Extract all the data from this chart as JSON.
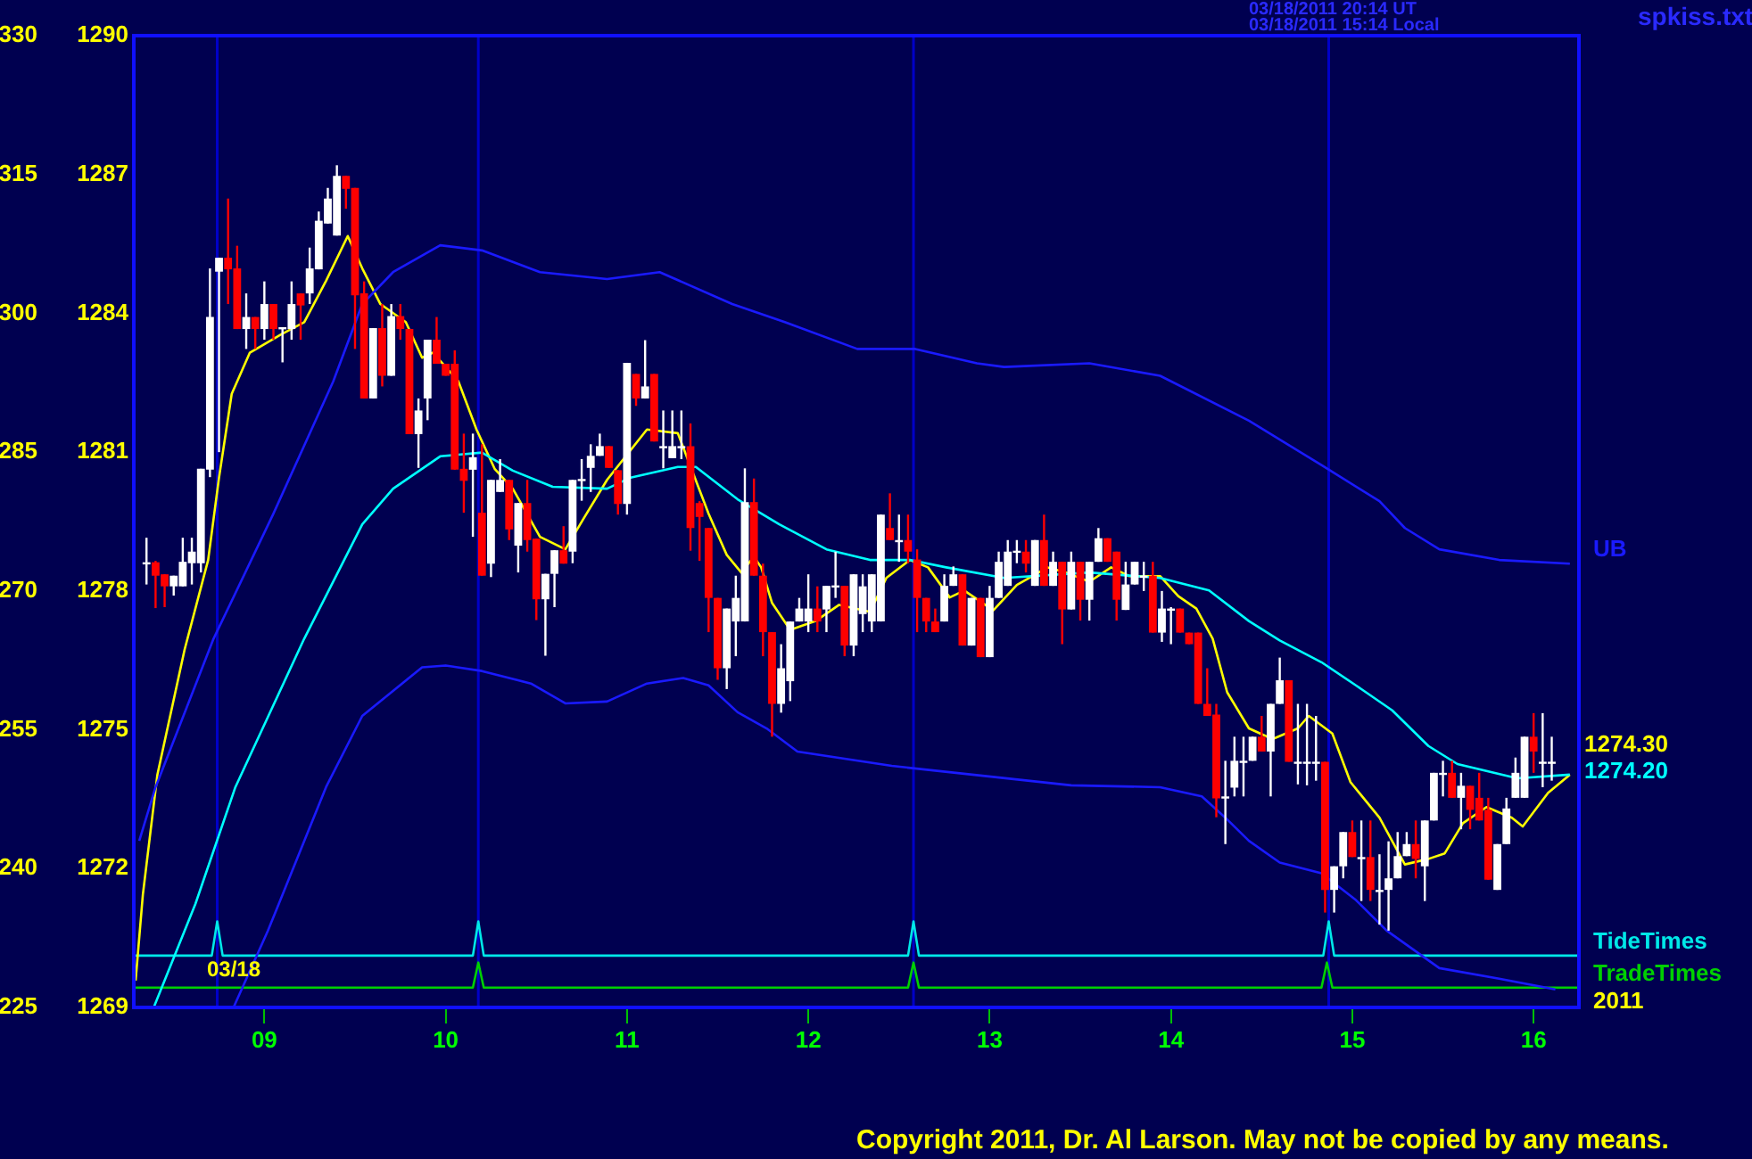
{
  "chart_data": {
    "type": "candlestick",
    "annotations": [
      "03/18/2011 20:14 UT",
      "03/18/2011 15:14 Local",
      "spkiss.txt",
      "03/18",
      "2011",
      "Copyright 2011, Dr. Al Larson. May not be copied by any means.",
      "1274.30",
      "1274.20"
    ],
    "x": [
      8.35,
      8.4,
      8.45,
      8.5,
      8.55,
      8.6,
      8.65,
      8.7,
      8.75,
      8.8,
      8.85,
      8.9,
      8.95,
      9,
      9.05,
      9.1,
      9.15,
      9.2,
      9.25,
      9.3,
      9.35,
      9.4,
      9.45,
      9.5,
      9.55,
      9.6,
      9.65,
      9.7,
      9.75,
      9.8,
      9.85,
      9.9,
      9.95,
      10,
      10.05,
      10.1,
      10.15,
      10.2,
      10.25,
      10.3,
      10.35,
      10.4,
      10.45,
      10.5,
      10.55,
      10.6,
      10.65,
      10.7,
      10.75,
      10.8,
      10.85,
      10.9,
      10.95,
      11,
      11.05,
      11.1,
      11.15,
      11.2,
      11.25,
      11.3,
      11.35,
      11.4,
      11.45,
      11.5,
      11.55,
      11.6,
      11.65,
      11.7,
      11.75,
      11.8,
      11.85,
      11.9,
      11.95,
      12,
      12.05,
      12.1,
      12.15,
      12.2,
      12.25,
      12.3,
      12.35,
      12.4,
      12.45,
      12.5,
      12.55,
      12.6,
      12.65,
      12.7,
      12.75,
      12.8,
      12.85,
      12.9,
      12.95,
      13,
      13.05,
      13.1,
      13.15,
      13.2,
      13.25,
      13.3,
      13.35,
      13.4,
      13.45,
      13.5,
      13.55,
      13.6,
      13.65,
      13.7,
      13.75,
      13.8,
      13.85,
      13.9,
      13.95,
      14,
      14.05,
      14.1,
      14.15,
      14.2,
      14.25,
      14.3,
      14.35,
      14.4,
      14.45,
      14.5,
      14.55,
      14.6,
      14.65,
      14.7,
      14.75,
      14.8,
      14.85,
      14.9,
      14.95,
      15,
      15.05,
      15.1,
      15.15,
      15.2,
      15.25,
      15.3,
      15.35,
      15.4,
      15.45,
      15.5,
      15.55,
      15.6,
      15.65,
      15.7,
      15.75,
      15.8,
      15.85,
      15.9,
      15.95,
      16,
      16.05,
      16.1
    ],
    "ohlc": [
      [
        1278.6,
        1279.15,
        1278.14,
        1278.62
      ],
      [
        1278.62,
        1278.65,
        1277.63,
        1278.33
      ],
      [
        1278.36,
        1278.36,
        1277.65,
        1278.1
      ],
      [
        1278.1,
        1278.33,
        1277.9,
        1278.33
      ],
      [
        1278.1,
        1279.15,
        1278.1,
        1278.63
      ],
      [
        1278.6,
        1279.15,
        1278.14,
        1278.85
      ],
      [
        1278.6,
        1280.64,
        1278.4,
        1280.64
      ],
      [
        1280.62,
        1284.97,
        1280.46,
        1283.92
      ],
      [
        1284.9,
        1285.2,
        1281,
        1285.2
      ],
      [
        1285.2,
        1286.48,
        1284.2,
        1284.95
      ],
      [
        1284.97,
        1285.46,
        1283.66,
        1283.66
      ],
      [
        1283.66,
        1284.43,
        1283.23,
        1283.92
      ],
      [
        1283.92,
        1283.92,
        1283.23,
        1283.66
      ],
      [
        1283.66,
        1284.69,
        1283.43,
        1284.2
      ],
      [
        1284.2,
        1284.2,
        1283.43,
        1283.66
      ],
      [
        1283.68,
        1283.7,
        1282.94,
        1283.7
      ],
      [
        1283.66,
        1284.69,
        1283.43,
        1284.2
      ],
      [
        1284.43,
        1284.43,
        1283.43,
        1284.17
      ],
      [
        1284.43,
        1285.42,
        1284.2,
        1284.97
      ],
      [
        1284.95,
        1286.2,
        1284.95,
        1286
      ],
      [
        1285.94,
        1286.71,
        1285.94,
        1286.48
      ],
      [
        1285.68,
        1287.2,
        1285.68,
        1286.97
      ],
      [
        1286.97,
        1286.97,
        1286.26,
        1286.69
      ],
      [
        1286.71,
        1286.71,
        1283.23,
        1284.39
      ],
      [
        1284.43,
        1284.69,
        1282.16,
        1282.16
      ],
      [
        1282.16,
        1283.68,
        1282.16,
        1283.68
      ],
      [
        1283.68,
        1284.2,
        1282.42,
        1282.65
      ],
      [
        1282.65,
        1284.2,
        1282.65,
        1283.94
      ],
      [
        1283.94,
        1284.2,
        1283.43,
        1283.66
      ],
      [
        1283.66,
        1283.66,
        1281.39,
        1281.39
      ],
      [
        1281.39,
        1282.16,
        1280.66,
        1281.9
      ],
      [
        1282.16,
        1283.43,
        1281.69,
        1283.43
      ],
      [
        1283.43,
        1283.92,
        1282.91,
        1282.91
      ],
      [
        1282.91,
        1282.91,
        1282.65,
        1282.65
      ],
      [
        1282.91,
        1283.2,
        1280.62,
        1280.62
      ],
      [
        1280.64,
        1281.4,
        1279.69,
        1280.38
      ],
      [
        1280.62,
        1281.4,
        1279.17,
        1280.89
      ],
      [
        1279.69,
        1281.17,
        1278.33,
        1278.33
      ],
      [
        1278.59,
        1280.4,
        1278.3,
        1280.4
      ],
      [
        1280.14,
        1280.85,
        1280.14,
        1280.4
      ],
      [
        1280.4,
        1280.4,
        1279.1,
        1279.33
      ],
      [
        1278.98,
        1279.9,
        1278.4,
        1279.9
      ],
      [
        1279.9,
        1280.4,
        1278.85,
        1279.1
      ],
      [
        1279.13,
        1279.13,
        1277.37,
        1277.82
      ],
      [
        1277.82,
        1278.37,
        1276.6,
        1278.37
      ],
      [
        1278.37,
        1278.88,
        1277.65,
        1278.88
      ],
      [
        1278.88,
        1279.4,
        1278.59,
        1278.59
      ],
      [
        1278.85,
        1280.4,
        1278.6,
        1280.4
      ],
      [
        1280.38,
        1280.85,
        1279.95,
        1280.42
      ],
      [
        1280.66,
        1281.17,
        1280.14,
        1280.92
      ],
      [
        1280.92,
        1281.4,
        1280.92,
        1281.13
      ],
      [
        1281.13,
        1281.13,
        1280.66,
        1280.66
      ],
      [
        1280.61,
        1280.61,
        1279.65,
        1279.88
      ],
      [
        1279.88,
        1282.93,
        1279.65,
        1282.93
      ],
      [
        1282.69,
        1282.69,
        1282,
        1282.16
      ],
      [
        1282.16,
        1283.42,
        1282.16,
        1282.42
      ],
      [
        1282.69,
        1282.69,
        1281.23,
        1281.23
      ],
      [
        1281.13,
        1281.9,
        1280.65,
        1281.13
      ],
      [
        1280.87,
        1281.9,
        1280.87,
        1281.13
      ],
      [
        1281.13,
        1281.9,
        1280.85,
        1281.13
      ],
      [
        1281.13,
        1281.62,
        1278.87,
        1279.36
      ],
      [
        1279.9,
        1279.94,
        1278.65,
        1279.6
      ],
      [
        1279.36,
        1279.36,
        1277.11,
        1277.85
      ],
      [
        1277.85,
        1277.85,
        1276.08,
        1276.33
      ],
      [
        1276.33,
        1277.62,
        1275.88,
        1277.62
      ],
      [
        1277.34,
        1278.33,
        1276.59,
        1277.85
      ],
      [
        1277.34,
        1280.65,
        1277.34,
        1279.92
      ],
      [
        1279.92,
        1280.43,
        1278.33,
        1278.33
      ],
      [
        1278.33,
        1278.59,
        1276.59,
        1277.11
      ],
      [
        1277.11,
        1277.11,
        1274.85,
        1275.56
      ],
      [
        1275.56,
        1276.85,
        1275.37,
        1276.33
      ],
      [
        1276.05,
        1277.34,
        1275.62,
        1277.34
      ],
      [
        1277.34,
        1277.85,
        1277.34,
        1277.62
      ],
      [
        1277.34,
        1278.36,
        1277.11,
        1277.62
      ],
      [
        1277.62,
        1278.1,
        1277.11,
        1277.34
      ],
      [
        1277.6,
        1278.11,
        1277.11,
        1278.11
      ],
      [
        1278.1,
        1278.85,
        1277.85,
        1278.12
      ],
      [
        1278.11,
        1278.11,
        1276.59,
        1276.82
      ],
      [
        1276.82,
        1278.36,
        1276.59,
        1278.36
      ],
      [
        1277.5,
        1278.36,
        1277.11,
        1278.1
      ],
      [
        1277.34,
        1278.36,
        1277.11,
        1278.36
      ],
      [
        1277.34,
        1279.65,
        1277.34,
        1279.65
      ],
      [
        1279.36,
        1280.11,
        1279.1,
        1279.1
      ],
      [
        1279.1,
        1279.65,
        1278.63,
        1279.1
      ],
      [
        1279.1,
        1279.65,
        1278.6,
        1278.85
      ],
      [
        1278.68,
        1278.9,
        1277.11,
        1277.85
      ],
      [
        1277.85,
        1277.85,
        1277.11,
        1277.34
      ],
      [
        1277.34,
        1277.62,
        1277.11,
        1277.11
      ],
      [
        1277.34,
        1278.36,
        1277.34,
        1278.11
      ],
      [
        1278.11,
        1278.53,
        1278.11,
        1278.36
      ],
      [
        1278.36,
        1278.36,
        1276.82,
        1276.82
      ],
      [
        1276.82,
        1277.85,
        1276.82,
        1277.85
      ],
      [
        1277.85,
        1277.85,
        1276.57,
        1276.57
      ],
      [
        1276.57,
        1278.11,
        1276.57,
        1277.85
      ],
      [
        1277.85,
        1278.85,
        1277.85,
        1278.63
      ],
      [
        1278.11,
        1279.1,
        1278.11,
        1278.85
      ],
      [
        1278.85,
        1279.1,
        1278.6,
        1278.87
      ],
      [
        1278.85,
        1279.1,
        1278.4,
        1278.59
      ],
      [
        1278.11,
        1279.1,
        1278.11,
        1279.1
      ],
      [
        1279.1,
        1279.65,
        1278.11,
        1278.11
      ],
      [
        1278.11,
        1278.85,
        1278.11,
        1278.63
      ],
      [
        1278.63,
        1278.63,
        1276.85,
        1277.6
      ],
      [
        1277.6,
        1278.85,
        1277.6,
        1278.63
      ],
      [
        1278.63,
        1278.63,
        1277.36,
        1277.81
      ],
      [
        1277.81,
        1278.63,
        1277.36,
        1278.63
      ],
      [
        1278.63,
        1279.36,
        1278.63,
        1279.14
      ],
      [
        1279.14,
        1279.14,
        1278.63,
        1278.63
      ],
      [
        1278.85,
        1278.85,
        1277.36,
        1277.81
      ],
      [
        1277.59,
        1278.63,
        1277.59,
        1278.14
      ],
      [
        1278.14,
        1278.63,
        1278.14,
        1278.63
      ],
      [
        1278.33,
        1278.63,
        1278,
        1278.33
      ],
      [
        1278.33,
        1278.63,
        1277.1,
        1277.1
      ],
      [
        1277.1,
        1278,
        1276.9,
        1277.62
      ],
      [
        1277.62,
        1277.65,
        1276.85,
        1277.62
      ],
      [
        1277.62,
        1277.62,
        1277.1,
        1277.1
      ],
      [
        1277.1,
        1277.1,
        1276.85,
        1276.85
      ],
      [
        1277.1,
        1277.1,
        1275.56,
        1275.56
      ],
      [
        1275.56,
        1276.33,
        1275.3,
        1275.3
      ],
      [
        1275.33,
        1275.56,
        1273.11,
        1273.52
      ],
      [
        1273.56,
        1274.33,
        1272.53,
        1273.56
      ],
      [
        1273.75,
        1274.85,
        1273.56,
        1274.33
      ],
      [
        1274.33,
        1274.85,
        1273.56,
        1274.33
      ],
      [
        1274.33,
        1274.85,
        1274.33,
        1274.85
      ],
      [
        1274.85,
        1275.3,
        1274.53,
        1274.53
      ],
      [
        1274.53,
        1275.56,
        1273.56,
        1275.56
      ],
      [
        1275.56,
        1276.56,
        1275.56,
        1276.07
      ],
      [
        1276.07,
        1276.07,
        1274.31,
        1274.31
      ],
      [
        1274.31,
        1275.56,
        1273.82,
        1274.31
      ],
      [
        1274.31,
        1275.56,
        1273.8,
        1274.31
      ],
      [
        1274.31,
        1275.3,
        1273.9,
        1274.31
      ],
      [
        1274.31,
        1274.31,
        1271.05,
        1271.54
      ],
      [
        1271.54,
        1272.05,
        1271.05,
        1272.05
      ],
      [
        1272.05,
        1272.79,
        1271.79,
        1272.79
      ],
      [
        1272.79,
        1273.04,
        1272.25,
        1272.25
      ],
      [
        1272.25,
        1273.04,
        1271.3,
        1272.25
      ],
      [
        1272.25,
        1273.04,
        1271.3,
        1271.54
      ],
      [
        1271.54,
        1272.31,
        1270.79,
        1271.54
      ],
      [
        1271.54,
        1272.59,
        1270.66,
        1271.79
      ],
      [
        1271.79,
        1272.79,
        1271.79,
        1272.27
      ],
      [
        1272.27,
        1272.79,
        1272.27,
        1272.53
      ],
      [
        1272.53,
        1273.04,
        1271.79,
        1272.21
      ],
      [
        1272.05,
        1273.04,
        1271.3,
        1273.04
      ],
      [
        1273.04,
        1274.07,
        1273.04,
        1274.07
      ],
      [
        1274.07,
        1274.33,
        1273.56,
        1274.07
      ],
      [
        1274.07,
        1274.33,
        1273.53,
        1273.53
      ],
      [
        1273.53,
        1274.07,
        1272.85,
        1273.79
      ],
      [
        1273.79,
        1273.79,
        1272.85,
        1273.27
      ],
      [
        1273.53,
        1274.07,
        1273.04,
        1273.04
      ],
      [
        1273.27,
        1273.53,
        1271.76,
        1271.76
      ],
      [
        1271.54,
        1272.53,
        1271.54,
        1272.53
      ],
      [
        1272.53,
        1273.53,
        1272.53,
        1273.3
      ],
      [
        1273.53,
        1274.4,
        1273.53,
        1274.07
      ],
      [
        1273.53,
        1274.85,
        1273.53,
        1274.85
      ],
      [
        1274.85,
        1275.36,
        1274.07,
        1274.53
      ],
      [
        1274.31,
        1275.36,
        1273.76,
        1274.31
      ],
      [
        1274.31,
        1274.85,
        1273.9,
        1274.31
      ]
    ],
    "series": [
      {
        "type": "line",
        "name": "UB",
        "color": "#1a1aff",
        "x": [
          8.31,
          8.4,
          8.72,
          9.05,
          9.38,
          9.54,
          9.71,
          9.97,
          10.2,
          10.52,
          10.89,
          11.18,
          11.58,
          11.87,
          12.27,
          12.59,
          12.93,
          13.08,
          13.55,
          13.94,
          14.43,
          14.83,
          15.15,
          15.29,
          15.48,
          15.81,
          16.2
        ],
        "values": [
          1272.6,
          1273.76,
          1276.97,
          1279.67,
          1282.53,
          1284.2,
          1284.89,
          1285.47,
          1285.36,
          1284.89,
          1284.74,
          1284.89,
          1284.2,
          1283.81,
          1283.23,
          1283.23,
          1282.92,
          1282.84,
          1282.92,
          1282.65,
          1281.68,
          1280.72,
          1279.94,
          1279.36,
          1278.9,
          1278.67,
          1278.59
        ]
      },
      {
        "type": "line",
        "color": "#1a1aff",
        "x": [
          8.83,
          9.02,
          9.34,
          9.54,
          9.87,
          10,
          10.2,
          10.47,
          10.66,
          10.89,
          11.11,
          11.31,
          11.45,
          11.61,
          11.77,
          11.94,
          12.46,
          13.45,
          13.94,
          14.17,
          14.3,
          14.43,
          14.6,
          14.83,
          15.02,
          15.19,
          15.48,
          15.81,
          16.12
        ],
        "values": [
          1269,
          1270.66,
          1273.76,
          1275.3,
          1276.35,
          1276.39,
          1276.27,
          1276,
          1275.57,
          1275.61,
          1276,
          1276.12,
          1275.96,
          1275.38,
          1275.03,
          1274.53,
          1274.22,
          1273.8,
          1273.76,
          1273.56,
          1273.1,
          1272.6,
          1272.13,
          1271.9,
          1271.32,
          1270.66,
          1269.85,
          1269.62,
          1269.39
        ]
      },
      {
        "type": "line",
        "color": "#00ffff",
        "x": [
          8.39,
          8.62,
          8.84,
          9.22,
          9.54,
          9.71,
          9.97,
          10.2,
          10.37,
          10.59,
          10.89,
          11.02,
          11.28,
          11.38,
          11.61,
          11.84,
          12.1,
          12.34,
          12.56,
          12.76,
          13.08,
          13.55,
          13.94,
          14.21,
          14.43,
          14.6,
          14.83,
          15.02,
          15.22,
          15.42,
          15.58,
          15.91,
          16.2
        ],
        "values": [
          1269,
          1271.24,
          1273.76,
          1276.97,
          1279.44,
          1280.21,
          1280.91,
          1280.99,
          1280.6,
          1280.25,
          1280.21,
          1280.45,
          1280.68,
          1280.68,
          1279.98,
          1279.44,
          1278.9,
          1278.67,
          1278.67,
          1278.51,
          1278.28,
          1278.4,
          1278.28,
          1278.01,
          1277.35,
          1276.93,
          1276.46,
          1275.96,
          1275.42,
          1274.65,
          1274.26,
          1273.95,
          1274.03
        ]
      },
      {
        "type": "line",
        "color": "#ffff00",
        "x": [
          8.29,
          8.33,
          8.41,
          8.56,
          8.69,
          8.75,
          8.82,
          8.92,
          9.09,
          9.22,
          9.34,
          9.46,
          9.54,
          9.64,
          9.78,
          9.87,
          9.93,
          10.07,
          10.17,
          10.27,
          10.37,
          10.52,
          10.66,
          10.76,
          10.89,
          11.11,
          11.28,
          11.45,
          11.55,
          11.63,
          11.7,
          11.74,
          11.8,
          11.9,
          12.04,
          12.17,
          12.34,
          12.43,
          12.56,
          12.66,
          12.78,
          12.86,
          13.02,
          13.15,
          13.32,
          13.42,
          13.55,
          13.67,
          13.77,
          13.94,
          14.04,
          14.14,
          14.23,
          14.31,
          14.43,
          14.56,
          14.7,
          14.76,
          14.89,
          14.99,
          15.15,
          15.29,
          15.42,
          15.51,
          15.61,
          15.74,
          15.88,
          15.94,
          16.08,
          16.2
        ],
        "values": [
          1269.58,
          1271.44,
          1274.03,
          1276.73,
          1278.67,
          1280.45,
          1282.26,
          1283.15,
          1283.54,
          1283.81,
          1284.7,
          1285.67,
          1284.97,
          1284.2,
          1283.81,
          1283.04,
          1283.15,
          1282.53,
          1281.49,
          1280.64,
          1280.21,
          1279.17,
          1278.9,
          1279.56,
          1280.4,
          1281.49,
          1281.41,
          1279.67,
          1278.78,
          1278.4,
          1278.74,
          1278.51,
          1277.74,
          1277.16,
          1277.35,
          1277.7,
          1277.55,
          1278.28,
          1278.67,
          1278.51,
          1277.86,
          1278.01,
          1277.58,
          1278.13,
          1278.51,
          1278.4,
          1278.2,
          1278.51,
          1278.32,
          1278.32,
          1277.89,
          1277.62,
          1276.97,
          1275.81,
          1275.03,
          1274.8,
          1275.03,
          1275.3,
          1274.92,
          1273.87,
          1273.1,
          1272.09,
          1272.21,
          1272.33,
          1272.98,
          1273.33,
          1273.1,
          1272.91,
          1273.64,
          1274.03
        ]
      },
      {
        "type": "line",
        "name": "TideTimes",
        "color": "#00e8e8",
        "x": [
          8.28,
          8.71,
          8.74,
          8.77,
          10.15,
          10.18,
          10.21,
          12.55,
          12.58,
          12.61,
          14.84,
          14.87,
          14.9,
          16.25
        ],
        "values": [
          1270.12,
          1270.12,
          1270.86,
          1270.12,
          1270.12,
          1270.86,
          1270.12,
          1270.12,
          1270.86,
          1270.12,
          1270.12,
          1270.86,
          1270.12,
          1270.12
        ]
      },
      {
        "type": "line",
        "name": "TradeTimes",
        "color": "#00d000",
        "x": [
          8.28,
          10.15,
          10.18,
          10.21,
          12.55,
          12.58,
          12.61,
          14.83,
          14.86,
          14.89,
          16.25
        ],
        "values": [
          1269.43,
          1269.43,
          1269.97,
          1269.43,
          1269.43,
          1269.97,
          1269.43,
          1269.43,
          1269.97,
          1269.43,
          1269.43
        ]
      }
    ],
    "ref_lines": [
      {
        "axis": "x",
        "value": 8.74,
        "color": "#0000c8"
      },
      {
        "axis": "x",
        "value": 10.18,
        "color": "#0000c8"
      },
      {
        "axis": "x",
        "value": 12.58,
        "color": "#0000c8"
      },
      {
        "axis": "x",
        "value": 14.87,
        "color": "#0000c8"
      }
    ],
    "xlim": [
      8.28,
      16.25
    ],
    "xticks": [
      {
        "value": 9,
        "label": "09"
      },
      {
        "value": 10,
        "label": "10"
      },
      {
        "value": 11,
        "label": "11"
      },
      {
        "value": 12,
        "label": "12"
      },
      {
        "value": 13,
        "label": "13"
      },
      {
        "value": 14,
        "label": "14"
      },
      {
        "value": 15,
        "label": "15"
      },
      {
        "value": 16,
        "label": "16"
      }
    ],
    "ylim": [
      1269,
      1290
    ],
    "yticks": [
      1269,
      1272,
      1275,
      1278,
      1281,
      1284,
      1287,
      1290
    ],
    "y2lim": [
      225,
      330
    ],
    "y2ticks": [
      225,
      240,
      255,
      270,
      285,
      300,
      315,
      330
    ],
    "grid": false,
    "legend": false
  }
}
